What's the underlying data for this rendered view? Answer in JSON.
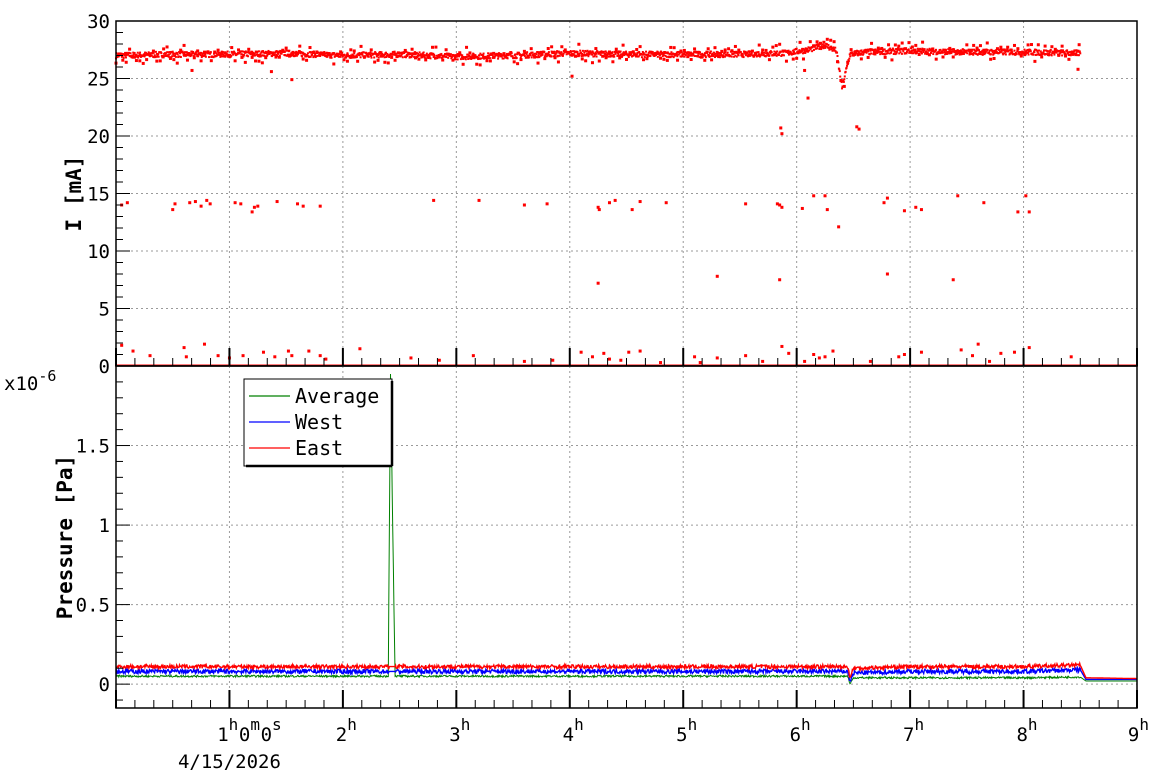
{
  "chart_data": [
    {
      "type": "scatter",
      "panel": "top",
      "ylabel": "I [mA]",
      "ylim": [
        0,
        30
      ],
      "yticks": [
        "0",
        "5",
        "10",
        "15",
        "20",
        "25",
        "30"
      ],
      "xlim": [
        0,
        9
      ],
      "grid": true,
      "series": [
        {
          "color": "#ff0000",
          "baseline_points": [
            [
              0,
              27.0
            ],
            [
              0.5,
              27.1
            ],
            [
              1.0,
              27.1
            ],
            [
              1.5,
              27.2
            ],
            [
              2.0,
              27.0
            ],
            [
              2.5,
              27.1
            ],
            [
              3.0,
              26.9
            ],
            [
              3.5,
              27.0
            ],
            [
              4.0,
              27.2
            ],
            [
              4.5,
              27.1
            ],
            [
              5.0,
              27.1
            ],
            [
              5.5,
              27.1
            ],
            [
              5.9,
              27.2
            ],
            [
              6.1,
              27.5
            ],
            [
              6.25,
              27.9
            ],
            [
              6.35,
              27.4
            ],
            [
              6.4,
              24.2
            ],
            [
              6.47,
              27.1
            ],
            [
              6.6,
              27.3
            ],
            [
              7.0,
              27.4
            ],
            [
              7.5,
              27.3
            ],
            [
              8.0,
              27.3
            ],
            [
              8.5,
              27.2
            ]
          ],
          "outliers": [
            [
              0.05,
              14.0
            ],
            [
              0.1,
              14.2
            ],
            [
              0.5,
              13.6
            ],
            [
              0.52,
              14.1
            ],
            [
              0.65,
              14.2
            ],
            [
              0.7,
              14.3
            ],
            [
              0.75,
              13.9
            ],
            [
              0.8,
              14.4
            ],
            [
              0.83,
              14.1
            ],
            [
              1.05,
              14.2
            ],
            [
              1.1,
              14.1
            ],
            [
              1.2,
              13.4
            ],
            [
              1.22,
              13.8
            ],
            [
              1.25,
              13.9
            ],
            [
              1.42,
              14.3
            ],
            [
              1.6,
              14.1
            ],
            [
              1.65,
              13.9
            ],
            [
              1.8,
              13.9
            ],
            [
              2.8,
              14.4
            ],
            [
              3.2,
              14.4
            ],
            [
              3.6,
              14.0
            ],
            [
              3.8,
              14.1
            ],
            [
              4.25,
              13.8
            ],
            [
              4.26,
              13.6
            ],
            [
              4.35,
              14.2
            ],
            [
              4.4,
              14.4
            ],
            [
              4.55,
              13.6
            ],
            [
              4.62,
              14.3
            ],
            [
              4.85,
              14.2
            ],
            [
              5.55,
              14.1
            ],
            [
              5.83,
              14.1
            ],
            [
              5.85,
              14.0
            ],
            [
              5.87,
              13.8
            ],
            [
              6.05,
              13.7
            ],
            [
              6.15,
              14.8
            ],
            [
              6.25,
              14.8
            ],
            [
              6.27,
              13.6
            ],
            [
              6.77,
              14.2
            ],
            [
              6.8,
              14.6
            ],
            [
              6.95,
              13.5
            ],
            [
              7.05,
              13.8
            ],
            [
              7.1,
              13.6
            ],
            [
              7.42,
              14.8
            ],
            [
              7.65,
              14.2
            ],
            [
              7.95,
              13.4
            ],
            [
              8.02,
              14.8
            ],
            [
              8.05,
              13.4
            ],
            [
              0.67,
              25.7
            ],
            [
              1.37,
              25.6
            ],
            [
              1.55,
              24.9
            ],
            [
              4.02,
              25.2
            ],
            [
              6.07,
              25.7
            ],
            [
              6.1,
              23.3
            ],
            [
              5.86,
              20.7
            ],
            [
              5.87,
              20.2
            ],
            [
              6.53,
              20.8
            ],
            [
              6.55,
              20.6
            ],
            [
              6.37,
              12.1
            ],
            [
              4.25,
              7.2
            ],
            [
              5.3,
              7.8
            ],
            [
              5.85,
              7.5
            ],
            [
              6.8,
              8.0
            ],
            [
              7.38,
              7.5
            ],
            [
              8.48,
              25.8
            ],
            [
              0.05,
              1.8
            ],
            [
              0.15,
              1.3
            ],
            [
              0.3,
              0.9
            ],
            [
              0.6,
              1.6
            ],
            [
              0.62,
              0.8
            ],
            [
              0.78,
              1.9
            ],
            [
              0.9,
              0.9
            ],
            [
              1.0,
              0.7
            ],
            [
              1.12,
              0.9
            ],
            [
              1.3,
              1.2
            ],
            [
              1.4,
              0.8
            ],
            [
              1.52,
              1.3
            ],
            [
              1.55,
              0.9
            ],
            [
              1.7,
              1.3
            ],
            [
              1.8,
              0.9
            ],
            [
              1.85,
              0.6
            ],
            [
              2.15,
              1.5
            ],
            [
              2.6,
              0.7
            ],
            [
              2.85,
              0.5
            ],
            [
              3.15,
              0.9
            ],
            [
              3.6,
              0.4
            ],
            [
              3.85,
              0.5
            ],
            [
              4.1,
              1.2
            ],
            [
              4.2,
              0.8
            ],
            [
              4.3,
              1.1
            ],
            [
              4.35,
              0.6
            ],
            [
              4.45,
              0.5
            ],
            [
              4.52,
              1.2
            ],
            [
              4.62,
              1.3
            ],
            [
              4.8,
              0.3
            ],
            [
              5.1,
              0.8
            ],
            [
              5.15,
              0.3
            ],
            [
              5.3,
              0.7
            ],
            [
              5.55,
              0.9
            ],
            [
              5.7,
              0.4
            ],
            [
              5.87,
              1.7
            ],
            [
              5.93,
              1.1
            ],
            [
              6.07,
              0.4
            ],
            [
              6.15,
              1.0
            ],
            [
              6.2,
              0.7
            ],
            [
              6.25,
              0.8
            ],
            [
              6.32,
              1.3
            ],
            [
              6.65,
              0.4
            ],
            [
              6.9,
              0.8
            ],
            [
              6.95,
              1.0
            ],
            [
              7.1,
              1.2
            ],
            [
              7.45,
              1.4
            ],
            [
              7.55,
              0.9
            ],
            [
              7.6,
              1.9
            ],
            [
              7.7,
              0.4
            ],
            [
              7.8,
              1.1
            ],
            [
              7.92,
              1.2
            ],
            [
              8.05,
              1.6
            ],
            [
              8.42,
              0.8
            ]
          ]
        }
      ]
    },
    {
      "type": "line",
      "panel": "bottom",
      "ylabel": "Pressure [Pa]",
      "y_multiplier": "x10",
      "y_multiplier_exp": "-6",
      "ylim": [
        -0.15,
        2.0
      ],
      "yticks": [
        "0",
        "0.5",
        "1",
        "1.5"
      ],
      "xlim": [
        0,
        9
      ],
      "xticks": [
        {
          "h": "1",
          "m": "0",
          "s": "0"
        },
        {
          "h": "2"
        },
        {
          "h": "3"
        },
        {
          "h": "4"
        },
        {
          "h": "5"
        },
        {
          "h": "6"
        },
        {
          "h": "7"
        },
        {
          "h": "8"
        },
        {
          "h": "9"
        }
      ],
      "xtick_date": "4/15/2026",
      "grid": true,
      "legend": "top-left",
      "series": [
        {
          "name": "Average",
          "color": "#008000",
          "points": [
            [
              0,
              0.05
            ],
            [
              1,
              0.05
            ],
            [
              2,
              0.05
            ],
            [
              2.4,
              0.05
            ],
            [
              2.42,
              1.95
            ],
            [
              2.44,
              0.95
            ],
            [
              2.46,
              0.05
            ],
            [
              3,
              0.05
            ],
            [
              4,
              0.05
            ],
            [
              5,
              0.05
            ],
            [
              6,
              0.05
            ],
            [
              6.45,
              0.05
            ],
            [
              6.47,
              0.0
            ],
            [
              6.5,
              0.04
            ],
            [
              7,
              0.04
            ],
            [
              8,
              0.04
            ],
            [
              8.5,
              0.045
            ],
            [
              8.55,
              0.02
            ],
            [
              9,
              0.02
            ]
          ]
        },
        {
          "name": "West",
          "color": "#0000ff",
          "points": [
            [
              0,
              0.08
            ],
            [
              1,
              0.08
            ],
            [
              2,
              0.08
            ],
            [
              3,
              0.08
            ],
            [
              4,
              0.08
            ],
            [
              5,
              0.08
            ],
            [
              6,
              0.08
            ],
            [
              6.45,
              0.08
            ],
            [
              6.47,
              0.02
            ],
            [
              6.5,
              0.07
            ],
            [
              7,
              0.08
            ],
            [
              8,
              0.08
            ],
            [
              8.5,
              0.09
            ],
            [
              8.55,
              0.03
            ],
            [
              9,
              0.03
            ]
          ]
        },
        {
          "name": "East",
          "color": "#ff0000",
          "points": [
            [
              0,
              0.11
            ],
            [
              1,
              0.11
            ],
            [
              2,
              0.11
            ],
            [
              3,
              0.11
            ],
            [
              4,
              0.11
            ],
            [
              5,
              0.11
            ],
            [
              6,
              0.11
            ],
            [
              6.45,
              0.11
            ],
            [
              6.47,
              0.04
            ],
            [
              6.5,
              0.1
            ],
            [
              7,
              0.11
            ],
            [
              8,
              0.11
            ],
            [
              8.5,
              0.12
            ],
            [
              8.55,
              0.04
            ],
            [
              9,
              0.035
            ]
          ]
        }
      ]
    }
  ]
}
